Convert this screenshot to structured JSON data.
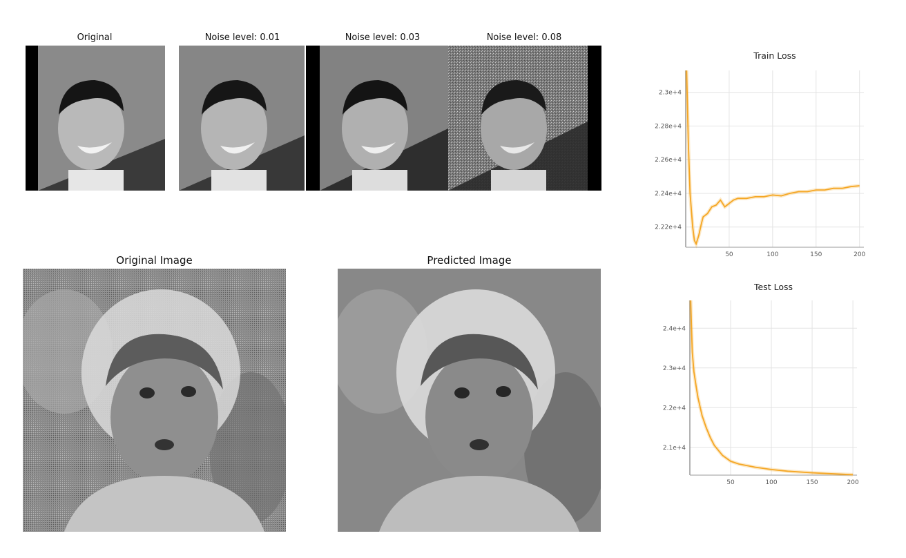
{
  "noise_row": {
    "titles": [
      "Original",
      "Noise level: 0.01",
      "Noise level: 0.03",
      "Noise level: 0.08"
    ]
  },
  "denoise_row": {
    "left_title": "Original Image",
    "right_title": "Predicted Image"
  },
  "chart_data": [
    {
      "type": "line",
      "title": "Train Loss",
      "xlabel": "",
      "ylabel": "",
      "x_ticks": [
        50,
        100,
        150,
        200
      ],
      "y_ticks": [
        22200,
        22400,
        22600,
        22800,
        23000
      ],
      "y_tick_labels": [
        "2.22e+4",
        "2.24e+4",
        "2.26e+4",
        "2.28e+4",
        "2.3e+4"
      ],
      "xlim": [
        0,
        205
      ],
      "ylim": [
        22080,
        23130
      ],
      "grid": true,
      "color": "#f5a623",
      "series": [
        {
          "x": [
            1,
            3,
            5,
            8,
            10,
            12,
            15,
            18,
            20,
            25,
            30,
            35,
            40,
            45,
            50,
            55,
            60,
            70,
            80,
            90,
            100,
            110,
            120,
            130,
            140,
            150,
            160,
            170,
            180,
            190,
            200
          ],
          "values": [
            23130,
            22700,
            22400,
            22200,
            22120,
            22100,
            22150,
            22220,
            22260,
            22280,
            22320,
            22330,
            22360,
            22320,
            22340,
            22360,
            22370,
            22370,
            22380,
            22380,
            22390,
            22385,
            22400,
            22410,
            22410,
            22420,
            22420,
            22430,
            22430,
            22440,
            22445
          ]
        }
      ]
    },
    {
      "type": "line",
      "title": "Test Loss",
      "xlabel": "",
      "ylabel": "",
      "x_ticks": [
        50,
        100,
        150,
        200
      ],
      "y_ticks": [
        21000,
        22000,
        23000,
        24000
      ],
      "y_tick_labels": [
        "2.1e+4",
        "2.2e+4",
        "2.3e+4",
        "2.4e+4"
      ],
      "xlim": [
        0,
        205
      ],
      "ylim": [
        20300,
        24700
      ],
      "grid": true,
      "color": "#f5a623",
      "series": [
        {
          "x": [
            1,
            2,
            3,
            5,
            8,
            10,
            15,
            20,
            25,
            30,
            40,
            50,
            60,
            80,
            100,
            120,
            150,
            180,
            200
          ],
          "values": [
            24700,
            24000,
            23400,
            22900,
            22500,
            22250,
            21800,
            21500,
            21250,
            21050,
            20800,
            20650,
            20580,
            20500,
            20440,
            20400,
            20360,
            20330,
            20310
          ]
        }
      ]
    }
  ]
}
